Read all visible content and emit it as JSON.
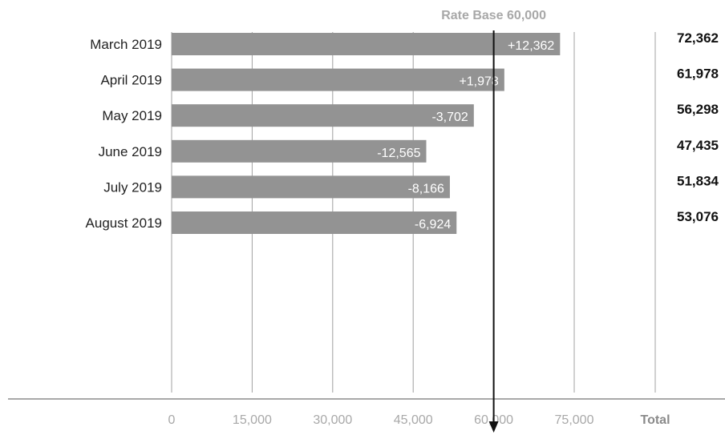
{
  "chart_data": {
    "type": "bar",
    "orientation": "horizontal",
    "categories": [
      "March 2019",
      "April 2019",
      "May 2019",
      "June 2019",
      "July 2019",
      "August 2019"
    ],
    "values": [
      72362,
      61978,
      56298,
      47435,
      51834,
      53076
    ],
    "difference_labels": [
      "+12,362",
      "+1,978",
      "-3,702",
      "-12,565",
      "-8,166",
      "-6,924"
    ],
    "total_labels": [
      "72,362",
      "61,978",
      "56,298",
      "47,435",
      "51,834",
      "53,076"
    ],
    "xlim": [
      0,
      75000
    ],
    "xticks": [
      0,
      15000,
      30000,
      45000,
      60000,
      75000
    ],
    "xtick_labels": [
      "0",
      "15,000",
      "30,000",
      "45,000",
      "60,000",
      "75,000"
    ],
    "total_column_label": "Total",
    "reference_line": {
      "value": 60000,
      "label": "Rate Base 60,000"
    },
    "grid": true,
    "colors": {
      "bar": "#939393",
      "grid": "#a0a0a0",
      "reference": "#111111",
      "axis": "#a8a8a8"
    }
  }
}
